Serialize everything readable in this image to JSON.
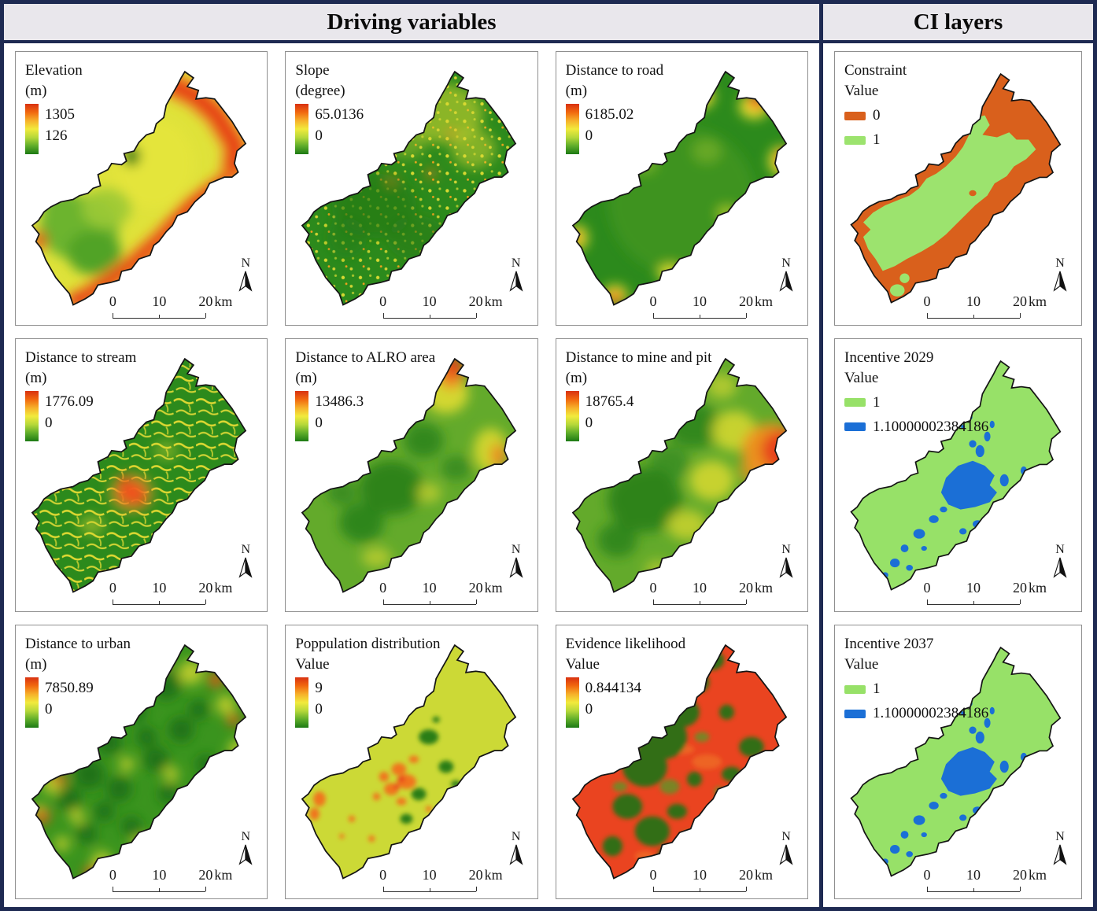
{
  "header": {
    "driving_title": "Driving variables",
    "ci_title": "CI layers"
  },
  "map_footer": {
    "north_label": "N",
    "scalebar_ticks": [
      "0",
      "10",
      "20"
    ],
    "scalebar_unit": "km"
  },
  "colors": {
    "frame_navy": "#1e2a52",
    "header_bg": "#e9e7ec",
    "ramp_gradient": [
      "#d93110",
      "#f1680f",
      "#f6b02a",
      "#f2ea3c",
      "#b6d83a",
      "#5fae2a",
      "#1d7a14"
    ],
    "constraint_0": "#d9601c",
    "constraint_1": "#9ce36e",
    "incentive_1": "#97e168",
    "incentive_high": "#1b6fd6"
  },
  "icons": {
    "north_arrow": "north-arrow-icon"
  },
  "driving_panels": [
    {
      "title": "Elevation",
      "subtitle": "(m)",
      "legend": "ramp",
      "max": "1305",
      "min": "126",
      "map": "elevation"
    },
    {
      "title": "Slope",
      "subtitle": "(degree)",
      "legend": "ramp",
      "max": "65.0136",
      "min": "0",
      "map": "slope"
    },
    {
      "title": "Distance to road",
      "subtitle": "(m)",
      "legend": "ramp",
      "max": "6185.02",
      "min": "0",
      "map": "road"
    },
    {
      "title": "Distance to stream",
      "subtitle": "(m)",
      "legend": "ramp",
      "max": "1776.09",
      "min": "0",
      "map": "stream"
    },
    {
      "title": "Distance to ALRO area",
      "subtitle": "(m)",
      "legend": "ramp",
      "max": "13486.3",
      "min": "0",
      "map": "alro"
    },
    {
      "title": "Distance to mine and pit",
      "subtitle": "(m)",
      "legend": "ramp",
      "max": "18765.4",
      "min": "0",
      "map": "mine"
    },
    {
      "title": "Distance to urban",
      "subtitle": "(m)",
      "legend": "ramp",
      "max": "7850.89",
      "min": "0",
      "map": "urban"
    },
    {
      "title": "Poppulation distribution",
      "subtitle": "Value",
      "legend": "ramp",
      "max": "9",
      "min": "0",
      "map": "population"
    },
    {
      "title": "Evidence likelihood",
      "subtitle": "Value",
      "legend": "ramp",
      "max": "0.844134",
      "min": "0",
      "map": "evidence"
    }
  ],
  "ci_panels": [
    {
      "title": "Constraint",
      "subtitle": "Value",
      "legend": "classes",
      "map": "constraint",
      "classes": [
        {
          "label": "0",
          "color": "#d9601c"
        },
        {
          "label": "1",
          "color": "#9ce36e"
        }
      ]
    },
    {
      "title": "Incentive 2029",
      "subtitle": "Value",
      "legend": "classes",
      "map": "incentive",
      "classes": [
        {
          "label": "1",
          "color": "#97e168"
        },
        {
          "label": "1.10000002384186",
          "color": "#1b6fd6"
        }
      ]
    },
    {
      "title": "Incentive 2037",
      "subtitle": "Value",
      "legend": "classes",
      "map": "incentive",
      "classes": [
        {
          "label": "1",
          "color": "#97e168"
        },
        {
          "label": "1.10000002384186",
          "color": "#1b6fd6"
        }
      ]
    }
  ]
}
